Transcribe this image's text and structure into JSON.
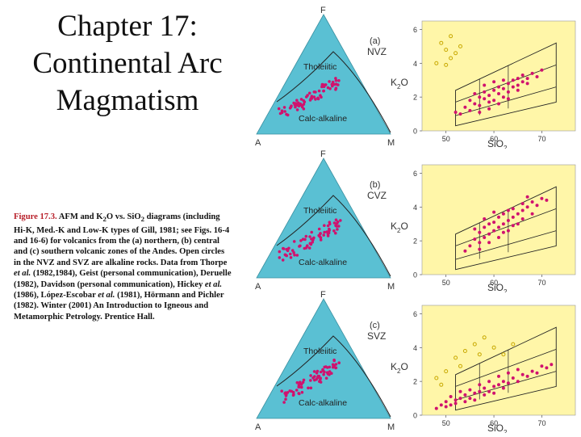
{
  "slide": {
    "title_lines": [
      "Chapter 17:",
      "Continental Arc",
      "Magmatism"
    ]
  },
  "caption": {
    "fig_label": "Figure 17.3.",
    "text_1": " AFM and K",
    "sub_k": "2",
    "text_2": "O vs. SiO",
    "sub_si": "2",
    "text_3": " diagrams (including Hi-K, Med.-K and Low-K types of Gill, 1981; see Figs. 16-4 and 16-6) for volcanics from the (a) northern, (b) central and (c) southern volcanic zones of the Andes. Open circles in the NVZ and SVZ are alkaline rocks. Data from Thorpe ",
    "etal_1": "et al.",
    "text_4": " (1982,1984), Geist (personal communication), Deruelle (1982), Davidson (personal communication), Hickey ",
    "etal_2": "et al.",
    "text_5": " (1986), López-Escobar ",
    "etal_3": "et al.",
    "text_6": " (1981), Hörmann and Pichler (1982). Winter (2001) An Introduction to Igneous and Metamorphic Petrology. Prentice Hall."
  },
  "colors": {
    "triangle_fill": "#5ac0d3",
    "plot_bg": "#fff6a8",
    "point": "#d0126e",
    "open_point": "#c8a800"
  },
  "chart_data": [
    {
      "type": "scatter",
      "panel": "a",
      "afm_vertices": {
        "top": "F",
        "left": "A",
        "right": "M"
      },
      "afm_field_labels": {
        "upper": "Tholeiitic",
        "lower": "Calc-alkaline"
      },
      "label": "(a)",
      "zone": "NVZ",
      "xlabel_main": "SiO",
      "xlabel_sub": "2",
      "ylabel_main": "K",
      "ylabel_sub": "2",
      "ylabel_tail": "O",
      "x_ticks": [
        "50",
        "60",
        "70"
      ],
      "y_ticks": [
        "0",
        "2",
        "4",
        "6"
      ],
      "xlim": [
        45,
        77
      ],
      "ylim": [
        0,
        6.5
      ],
      "k2o_points": [
        [
          54,
          1.4
        ],
        [
          55,
          1.8
        ],
        [
          56,
          1.6
        ],
        [
          57,
          2.0
        ],
        [
          57,
          1.5
        ],
        [
          58,
          1.9
        ],
        [
          58,
          2.3
        ],
        [
          59,
          1.7
        ],
        [
          59,
          2.1
        ],
        [
          60,
          2.4
        ],
        [
          60,
          1.8
        ],
        [
          61,
          2.2
        ],
        [
          61,
          2.6
        ],
        [
          62,
          2.0
        ],
        [
          62,
          2.5
        ],
        [
          63,
          2.8
        ],
        [
          63,
          2.3
        ],
        [
          64,
          2.6
        ],
        [
          64,
          3.0
        ],
        [
          65,
          2.7
        ],
        [
          65,
          3.1
        ],
        [
          66,
          2.9
        ],
        [
          66,
          3.3
        ],
        [
          67,
          3.1
        ],
        [
          68,
          3.4
        ],
        [
          69,
          3.2
        ],
        [
          70,
          3.6
        ],
        [
          56,
          2.2
        ],
        [
          58,
          2.7
        ],
        [
          60,
          2.9
        ],
        [
          62,
          3.0
        ],
        [
          63,
          1.9
        ],
        [
          65,
          2.4
        ],
        [
          67,
          2.8
        ],
        [
          55,
          1.2
        ],
        [
          57,
          1.1
        ],
        [
          59,
          1.3
        ],
        [
          61,
          1.6
        ],
        [
          53,
          1.0
        ],
        [
          52,
          1.1
        ]
      ],
      "alkaline_points": [
        [
          49,
          5.2
        ],
        [
          50,
          4.8
        ],
        [
          51,
          5.6
        ],
        [
          52,
          4.6
        ],
        [
          50,
          3.9
        ],
        [
          53,
          5.0
        ],
        [
          51,
          4.3
        ],
        [
          48,
          4.0
        ]
      ]
    },
    {
      "type": "scatter",
      "panel": "b",
      "afm_vertices": {
        "top": "F",
        "left": "A",
        "right": "M"
      },
      "afm_field_labels": {
        "upper": "Tholeiitic",
        "lower": "Calc-alkaline"
      },
      "label": "(b)",
      "zone": "CVZ",
      "xlabel_main": "SiO",
      "xlabel_sub": "2",
      "ylabel_main": "K",
      "ylabel_sub": "2",
      "ylabel_tail": "O",
      "x_ticks": [
        "50",
        "60",
        "70"
      ],
      "y_ticks": [
        "0",
        "2",
        "4",
        "6"
      ],
      "xlim": [
        45,
        77
      ],
      "ylim": [
        0,
        6.5
      ],
      "k2o_points": [
        [
          55,
          1.7
        ],
        [
          56,
          2.1
        ],
        [
          57,
          1.9
        ],
        [
          57,
          2.5
        ],
        [
          58,
          2.2
        ],
        [
          58,
          2.8
        ],
        [
          59,
          2.4
        ],
        [
          59,
          3.0
        ],
        [
          60,
          2.6
        ],
        [
          60,
          3.1
        ],
        [
          61,
          2.8
        ],
        [
          61,
          3.4
        ],
        [
          62,
          3.0
        ],
        [
          62,
          3.6
        ],
        [
          63,
          3.2
        ],
        [
          63,
          3.8
        ],
        [
          64,
          3.4
        ],
        [
          64,
          3.9
        ],
        [
          65,
          3.6
        ],
        [
          66,
          3.8
        ],
        [
          66,
          4.2
        ],
        [
          67,
          4.0
        ],
        [
          68,
          4.3
        ],
        [
          69,
          4.1
        ],
        [
          70,
          4.5
        ],
        [
          56,
          2.7
        ],
        [
          58,
          3.3
        ],
        [
          60,
          3.7
        ],
        [
          62,
          2.5
        ],
        [
          64,
          2.9
        ],
        [
          66,
          3.3
        ],
        [
          68,
          3.6
        ],
        [
          57,
          1.5
        ],
        [
          59,
          1.9
        ],
        [
          61,
          2.2
        ],
        [
          63,
          2.6
        ],
        [
          65,
          3.0
        ],
        [
          67,
          4.6
        ],
        [
          71,
          4.4
        ],
        [
          54,
          1.4
        ]
      ],
      "alkaline_points": []
    },
    {
      "type": "scatter",
      "panel": "c",
      "afm_vertices": {
        "top": "F",
        "left": "A",
        "right": "M"
      },
      "afm_field_labels": {
        "upper": "Tholeiitic",
        "lower": "Calc-alkaline"
      },
      "label": "(c)",
      "zone": "SVZ",
      "xlabel_main": "SiO",
      "xlabel_sub": "2",
      "ylabel_main": "K",
      "ylabel_sub": "2",
      "ylabel_tail": "O",
      "x_ticks": [
        "50",
        "60",
        "70"
      ],
      "y_ticks": [
        "0",
        "2",
        "4",
        "6"
      ],
      "xlim": [
        45,
        77
      ],
      "ylim": [
        0,
        6.5
      ],
      "k2o_points": [
        [
          48,
          0.4
        ],
        [
          49,
          0.6
        ],
        [
          50,
          0.5
        ],
        [
          50,
          0.8
        ],
        [
          51,
          0.6
        ],
        [
          52,
          0.9
        ],
        [
          52,
          0.7
        ],
        [
          53,
          1.0
        ],
        [
          54,
          0.8
        ],
        [
          54,
          1.2
        ],
        [
          55,
          1.0
        ],
        [
          56,
          1.3
        ],
        [
          56,
          0.9
        ],
        [
          57,
          1.4
        ],
        [
          58,
          1.2
        ],
        [
          58,
          1.6
        ],
        [
          59,
          1.4
        ],
        [
          60,
          1.7
        ],
        [
          60,
          1.3
        ],
        [
          61,
          1.8
        ],
        [
          62,
          1.6
        ],
        [
          62,
          2.0
        ],
        [
          63,
          1.9
        ],
        [
          64,
          2.2
        ],
        [
          65,
          2.0
        ],
        [
          66,
          2.4
        ],
        [
          67,
          2.3
        ],
        [
          68,
          2.6
        ],
        [
          69,
          2.5
        ],
        [
          70,
          2.9
        ],
        [
          71,
          2.8
        ],
        [
          72,
          3.0
        ],
        [
          53,
          1.4
        ],
        [
          55,
          1.5
        ],
        [
          57,
          1.8
        ],
        [
          59,
          2.0
        ],
        [
          61,
          2.3
        ],
        [
          63,
          2.5
        ],
        [
          65,
          2.7
        ],
        [
          51,
          1.1
        ]
      ],
      "alkaline_points": [
        [
          48,
          2.2
        ],
        [
          50,
          2.6
        ],
        [
          52,
          3.4
        ],
        [
          54,
          3.8
        ],
        [
          56,
          4.2
        ],
        [
          57,
          3.6
        ],
        [
          58,
          4.6
        ],
        [
          60,
          4.0
        ],
        [
          62,
          3.6
        ],
        [
          64,
          4.2
        ],
        [
          49,
          1.8
        ],
        [
          53,
          2.9
        ]
      ]
    }
  ]
}
